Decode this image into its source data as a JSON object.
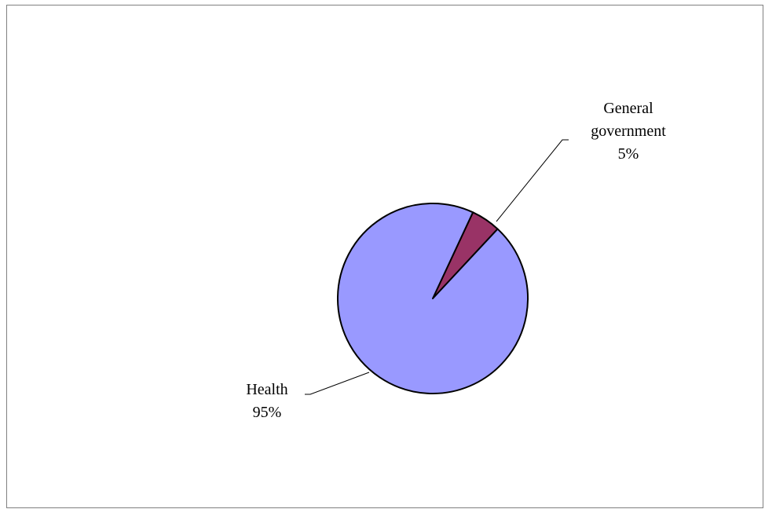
{
  "chart_data": {
    "type": "pie",
    "title": "",
    "slices": [
      {
        "label_lines": [
          "General",
          "government"
        ],
        "value": 5,
        "value_label": "5%",
        "color": "#993366"
      },
      {
        "label_lines": [
          "Health"
        ],
        "value": 95,
        "value_label": "95%",
        "color": "#9999ff"
      }
    ],
    "border_color": "#000000",
    "legend": "none"
  }
}
